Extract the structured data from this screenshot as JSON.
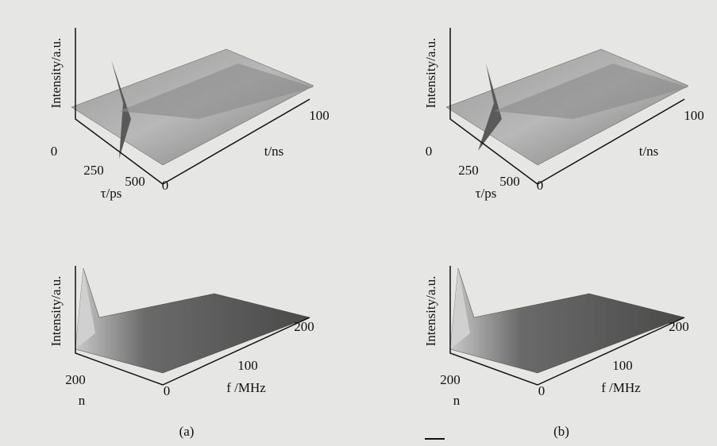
{
  "figure": {
    "panels": [
      {
        "top": {
          "z_label": "Intensity/a.u.",
          "tau_ticks": [
            "0",
            "250",
            "500"
          ],
          "tau_label": "τ/ps",
          "t_ticks": [
            "0",
            "100"
          ],
          "t_label": "t/ns"
        },
        "bottom": {
          "z_label": "Intensity/a.u.",
          "n_ticks": [
            "200"
          ],
          "n_label": "n",
          "f_ticks": [
            "0",
            "100",
            "200"
          ],
          "f_label": "f /MHz"
        },
        "label": "(a)"
      },
      {
        "top": {
          "z_label": "Intensity/a.u.",
          "tau_ticks": [
            "0",
            "250",
            "500"
          ],
          "tau_label": "τ/ps",
          "t_ticks": [
            "0",
            "100"
          ],
          "t_label": "t/ns"
        },
        "bottom": {
          "z_label": "Intensity/a.u.",
          "n_ticks": [
            "200"
          ],
          "n_label": "n",
          "f_ticks": [
            "0",
            "100",
            "200"
          ],
          "f_label": "f /MHz"
        },
        "label": "(b)"
      }
    ]
  }
}
